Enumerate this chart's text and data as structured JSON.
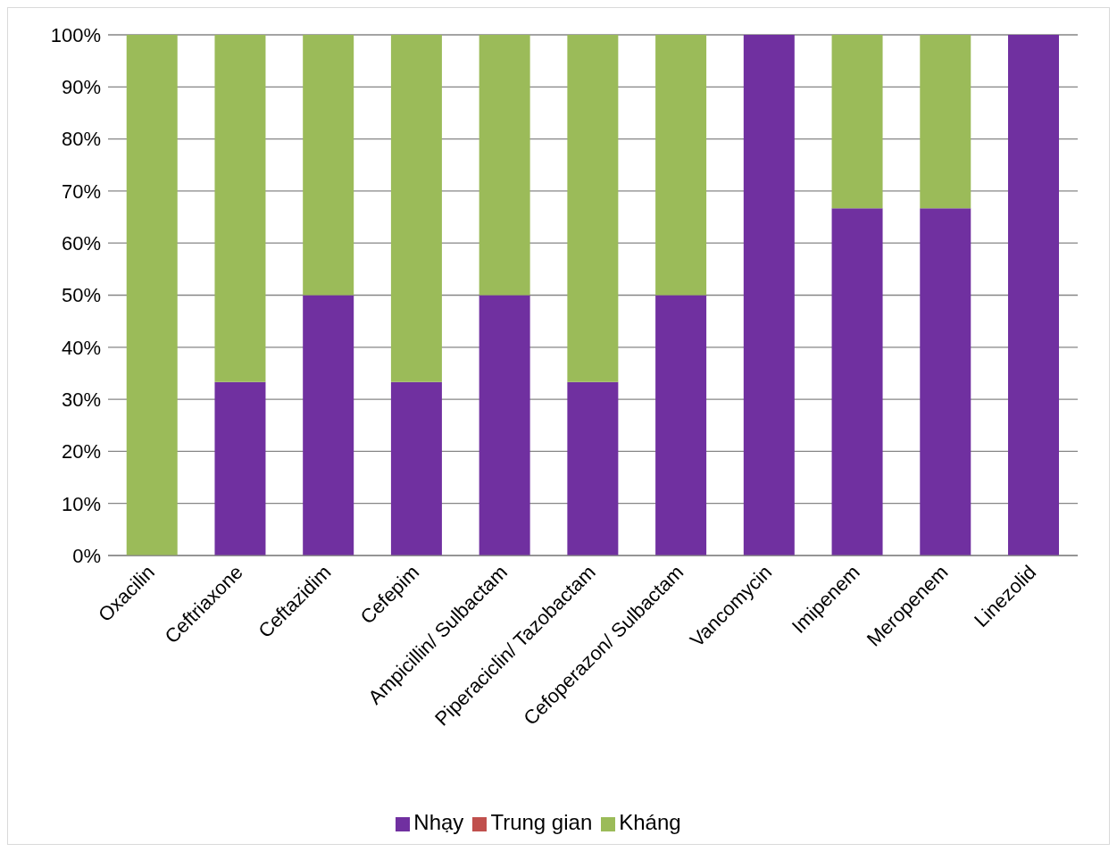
{
  "chart_data": {
    "type": "bar",
    "stacked": true,
    "categories": [
      "Oxacilin",
      "Ceftriaxone",
      "Ceftazidim",
      "Cefepim",
      "Ampicillin/ Sulbactam",
      "Piperaciclin/ Tazobactam",
      "Cefoperazon/ Sulbactam",
      "Vancomycin",
      "Imipenem",
      "Meropenem",
      "Linezolid"
    ],
    "series": [
      {
        "name": "Nhạy",
        "color": "#7030a0",
        "values": [
          0,
          33.3,
          50,
          33.3,
          50,
          33.3,
          50,
          100,
          66.7,
          66.7,
          100
        ]
      },
      {
        "name": "Trung gian",
        "color": "#c0504d",
        "values": [
          0,
          0,
          0,
          0,
          0,
          0,
          0,
          0,
          0,
          0,
          0
        ]
      },
      {
        "name": "Kháng",
        "color": "#9bbb59",
        "values": [
          100,
          66.7,
          50,
          66.7,
          50,
          66.7,
          50,
          0,
          33.3,
          33.3,
          0
        ]
      }
    ],
    "ylim": [
      0,
      100
    ],
    "yticks": [
      {
        "value": 0,
        "label": "0%"
      },
      {
        "value": 10,
        "label": "10%"
      },
      {
        "value": 20,
        "label": "20%"
      },
      {
        "value": 30,
        "label": "30%"
      },
      {
        "value": 40,
        "label": "40%"
      },
      {
        "value": 50,
        "label": "50%"
      },
      {
        "value": 60,
        "label": "60%"
      },
      {
        "value": 70,
        "label": "70%"
      },
      {
        "value": 80,
        "label": "80%"
      },
      {
        "value": 90,
        "label": "90%"
      },
      {
        "value": 100,
        "label": "100%"
      }
    ],
    "grid": "y",
    "legend": "bottom"
  }
}
